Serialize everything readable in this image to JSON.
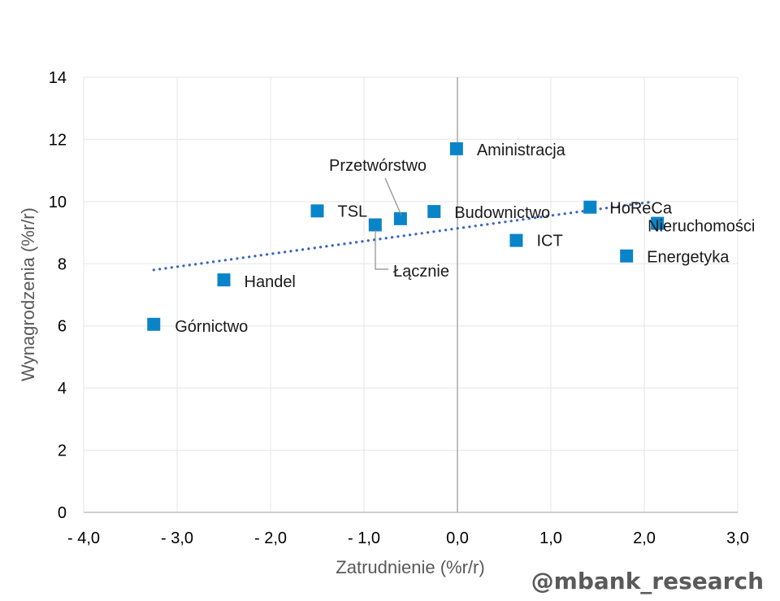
{
  "chart_data": {
    "type": "scatter",
    "xlabel": "Zatrudnienie (%r/r)",
    "ylabel": "Wynagrodzenia (%r/r)",
    "xlim": [
      -4.0,
      3.0
    ],
    "ylim": [
      0,
      14
    ],
    "x_ticks": [
      {
        "value": -4,
        "label": "- 4,0"
      },
      {
        "value": -3,
        "label": "- 3,0"
      },
      {
        "value": -2,
        "label": "- 2,0"
      },
      {
        "value": -1,
        "label": "- 1,0"
      },
      {
        "value": 0,
        "label": "0,0"
      },
      {
        "value": 1,
        "label": "1,0"
      },
      {
        "value": 2,
        "label": "2,0"
      },
      {
        "value": 3,
        "label": "3,0"
      }
    ],
    "y_ticks": [
      {
        "value": 0,
        "label": "0"
      },
      {
        "value": 2,
        "label": "2"
      },
      {
        "value": 4,
        "label": "4"
      },
      {
        "value": 6,
        "label": "6"
      },
      {
        "value": 8,
        "label": "8"
      },
      {
        "value": 10,
        "label": "10"
      },
      {
        "value": 12,
        "label": "12"
      },
      {
        "value": 14,
        "label": "14"
      }
    ],
    "grid": true,
    "points": [
      {
        "label": "Aministracja",
        "x": -0.01,
        "y": 11.7
      },
      {
        "label": "Przetwórstwo",
        "x": -0.61,
        "y": 9.45
      },
      {
        "label": "TSL",
        "x": -1.5,
        "y": 9.7
      },
      {
        "label": "Budownictwo",
        "x": -0.25,
        "y": 9.68
      },
      {
        "label": "Łącznie",
        "x": -0.88,
        "y": 9.25
      },
      {
        "label": "HoReCa",
        "x": 1.42,
        "y": 9.82
      },
      {
        "label": "Nieruchomości",
        "x": 2.14,
        "y": 9.3
      },
      {
        "label": "ICT",
        "x": 0.63,
        "y": 8.75
      },
      {
        "label": "Energetyka",
        "x": 1.81,
        "y": 8.25
      },
      {
        "label": "Handel",
        "x": -2.5,
        "y": 7.48
      },
      {
        "label": "Górnictwo",
        "x": -3.25,
        "y": 6.05
      }
    ],
    "trendline": {
      "type": "linear",
      "style": "dotted",
      "x_start": -3.25,
      "x_end": 2.1,
      "y_start": 7.8,
      "y_end": 10.0
    },
    "colors": {
      "marker": "#0a84c8",
      "trendline": "#3a64c0",
      "grid": "#e6e6e6",
      "zero_line": "#aaaaaa",
      "axis": "#bfbfbf"
    }
  },
  "watermark": "@mbank_research"
}
